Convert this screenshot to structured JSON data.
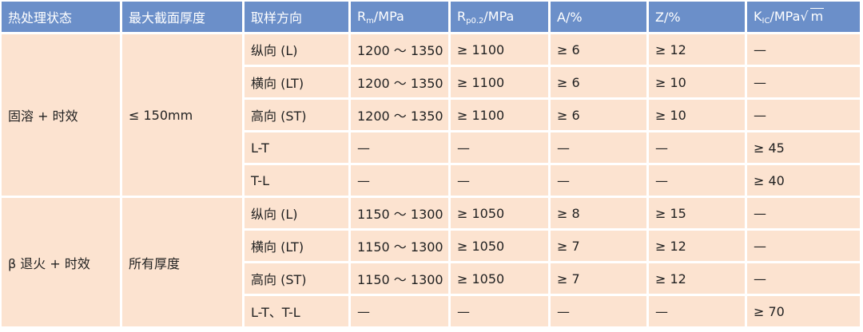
{
  "headers": {
    "c0": "热处理状态",
    "c1": "最大截面厚度",
    "c2": "取样方向",
    "rm": "R",
    "rm_sub": "m",
    "rm_unit": "/MPa",
    "rp": "R",
    "rp_sub": "p0.2",
    "rp_unit": "/MPa",
    "a": "A/%",
    "z": "Z/%",
    "k": "K",
    "k_sub": "IC",
    "k_unit": "/MPa",
    "k_root": "m"
  },
  "groups": [
    {
      "state": "固溶 + 时效",
      "thickness": "≤ 150mm",
      "rows": [
        [
          "纵向 (L)",
          "1200 ～ 1350",
          "≥ 1100",
          "≥ 6",
          "≥ 12",
          "—"
        ],
        [
          "横向 (LT)",
          "1200 ～ 1350",
          "≥ 1100",
          "≥ 6",
          "≥ 10",
          "—"
        ],
        [
          "高向 (ST)",
          "1200 ～ 1350",
          "≥ 1100",
          "≥ 6",
          "≥ 10",
          "—"
        ],
        [
          "L-T",
          "—",
          "—",
          "—",
          "—",
          "≥ 45"
        ],
        [
          "T-L",
          "—",
          "—",
          "—",
          "—",
          "≥ 40"
        ]
      ]
    },
    {
      "state": "β 退火 + 时效",
      "thickness": "所有厚度",
      "rows": [
        [
          "纵向 (L)",
          "1150 ～ 1300",
          "≥ 1050",
          "≥ 8",
          "≥ 15",
          "—"
        ],
        [
          "横向 (LT)",
          "1150 ～ 1300",
          "≥ 1050",
          "≥ 7",
          "≥ 12",
          "—"
        ],
        [
          "高向 (ST)",
          "1150 ～ 1300",
          "≥ 1050",
          "≥ 7",
          "≥ 12",
          "—"
        ],
        [
          "L-T、T-L",
          "—",
          "—",
          "—",
          "—",
          "≥ 70"
        ]
      ]
    }
  ]
}
